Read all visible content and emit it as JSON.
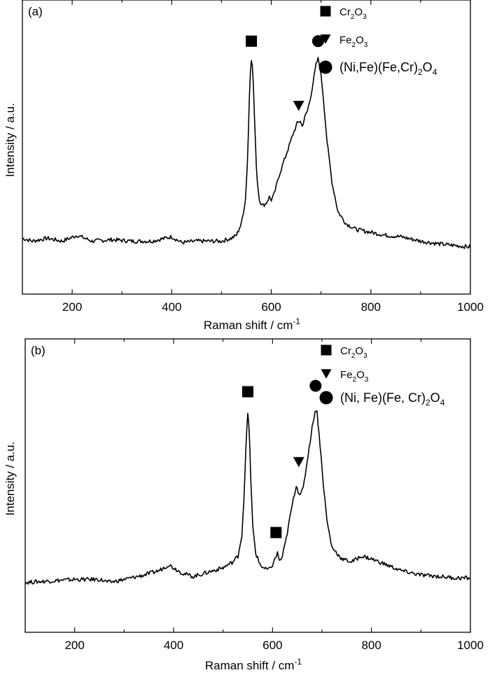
{
  "colors": {
    "line": "#000000",
    "background": "#ffffff"
  },
  "chart_data": [
    {
      "type": "line",
      "panel_label": "(a)",
      "xlabel": "Raman shift / cm",
      "xlabel_sup": "-1",
      "ylabel": "Intensity / a.u.",
      "xlim": [
        100,
        1000
      ],
      "ylim": [
        0,
        100
      ],
      "x_ticks": [
        200,
        400,
        600,
        800,
        1000
      ],
      "x_tick_labels": [
        "200",
        "400",
        "600",
        "800",
        "1000"
      ],
      "y_ticks_labeled": false,
      "grid": false,
      "series": [
        {
          "name": "spectrum (a)",
          "points": [
            [
              100,
              19
            ],
            [
              120,
              18
            ],
            [
              150,
              19
            ],
            [
              180,
              18
            ],
            [
              210,
              20
            ],
            [
              240,
              18
            ],
            [
              280,
              18.5
            ],
            [
              320,
              18
            ],
            [
              360,
              18
            ],
            [
              400,
              19.5
            ],
            [
              420,
              17.5
            ],
            [
              450,
              18
            ],
            [
              480,
              18
            ],
            [
              500,
              18
            ],
            [
              520,
              19
            ],
            [
              530,
              20
            ],
            [
              540,
              24
            ],
            [
              548,
              32
            ],
            [
              553,
              48
            ],
            [
              557,
              74
            ],
            [
              560,
              80
            ],
            [
              563,
              76
            ],
            [
              567,
              56
            ],
            [
              571,
              40
            ],
            [
              576,
              32
            ],
            [
              583,
              30
            ],
            [
              590,
              31
            ],
            [
              596,
              33
            ],
            [
              600,
              32
            ],
            [
              606,
              34
            ],
            [
              615,
              40
            ],
            [
              625,
              45
            ],
            [
              635,
              50
            ],
            [
              645,
              55
            ],
            [
              652,
              58
            ],
            [
              658,
              59
            ],
            [
              662,
              57
            ],
            [
              667,
              60
            ],
            [
              672,
              62
            ],
            [
              678,
              66
            ],
            [
              684,
              72
            ],
            [
              690,
              78
            ],
            [
              694,
              80
            ],
            [
              698,
              77
            ],
            [
              704,
              68
            ],
            [
              712,
              52
            ],
            [
              722,
              38
            ],
            [
              734,
              28
            ],
            [
              750,
              24
            ],
            [
              770,
              22
            ],
            [
              800,
              21
            ],
            [
              830,
              20
            ],
            [
              860,
              19.5
            ],
            [
              900,
              18
            ],
            [
              940,
              17
            ],
            [
              970,
              16.5
            ],
            [
              1000,
              16
            ]
          ]
        }
      ],
      "markers": [
        {
          "shape": "square",
          "x": 560,
          "y": 86,
          "assignment": "Cr2O3"
        },
        {
          "shape": "triangle",
          "x": 655,
          "y": 64,
          "assignment": "Fe2O3"
        },
        {
          "shape": "circle",
          "x": 694,
          "y": 86,
          "assignment": "(Ni,Fe)(Fe,Cr)2O4"
        }
      ],
      "legend": {
        "position": "top-right",
        "entries": [
          {
            "marker": "square",
            "parts": [
              [
                "Cr",
                ""
              ],
              [
                "2",
                "sub"
              ],
              [
                "O",
                ""
              ],
              [
                "3",
                "sub"
              ]
            ]
          },
          {
            "marker": "triangle",
            "parts": [
              [
                "Fe",
                ""
              ],
              [
                "2",
                "sub"
              ],
              [
                "O",
                ""
              ],
              [
                "3",
                "sub"
              ]
            ]
          },
          {
            "marker": "circle",
            "parts": [
              [
                "(Ni,Fe)(Fe,Cr)",
                ""
              ],
              [
                "2",
                "sub"
              ],
              [
                "O",
                ""
              ],
              [
                "4",
                "sub"
              ]
            ]
          }
        ]
      }
    },
    {
      "type": "line",
      "panel_label": "(b)",
      "xlabel": "Raman shift / cm",
      "xlabel_sup": "-1",
      "ylabel": "Intensity / a.u.",
      "xlim": [
        100,
        1000
      ],
      "ylim": [
        0,
        100
      ],
      "x_ticks": [
        200,
        400,
        600,
        800,
        1000
      ],
      "x_tick_labels": [
        "200",
        "400",
        "600",
        "800",
        "1000"
      ],
      "y_ticks_labeled": false,
      "grid": false,
      "series": [
        {
          "name": "spectrum (b)",
          "points": [
            [
              100,
              17
            ],
            [
              150,
              17.5
            ],
            [
              200,
              18
            ],
            [
              250,
              18
            ],
            [
              270,
              17
            ],
            [
              300,
              18
            ],
            [
              340,
              19.5
            ],
            [
              370,
              21
            ],
            [
              390,
              23
            ],
            [
              400,
              22
            ],
            [
              420,
              20
            ],
            [
              440,
              19
            ],
            [
              460,
              20
            ],
            [
              480,
              21
            ],
            [
              500,
              22
            ],
            [
              520,
              24
            ],
            [
              530,
              26
            ],
            [
              538,
              33
            ],
            [
              543,
              48
            ],
            [
              547,
              67
            ],
            [
              550,
              74
            ],
            [
              553,
              70
            ],
            [
              556,
              52
            ],
            [
              560,
              36
            ],
            [
              566,
              27
            ],
            [
              575,
              23
            ],
            [
              585,
              21.5
            ],
            [
              595,
              21.5
            ],
            [
              600,
              23
            ],
            [
              605,
              25
            ],
            [
              610,
              27
            ],
            [
              615,
              24
            ],
            [
              620,
              26
            ],
            [
              628,
              32
            ],
            [
              636,
              40
            ],
            [
              644,
              47
            ],
            [
              648,
              50
            ],
            [
              652,
              48
            ],
            [
              657,
              47
            ],
            [
              662,
              49
            ],
            [
              668,
              56
            ],
            [
              675,
              64
            ],
            [
              682,
              72
            ],
            [
              687,
              76
            ],
            [
              690,
              75
            ],
            [
              695,
              66
            ],
            [
              702,
              52
            ],
            [
              710,
              38
            ],
            [
              720,
              29
            ],
            [
              740,
              25
            ],
            [
              760,
              24
            ],
            [
              780,
              26
            ],
            [
              800,
              25
            ],
            [
              830,
              23
            ],
            [
              860,
              21
            ],
            [
              900,
              19.5
            ],
            [
              940,
              19
            ],
            [
              970,
              18.5
            ],
            [
              1000,
              18.5
            ]
          ]
        }
      ],
      "markers": [
        {
          "shape": "square",
          "x": 550,
          "y": 82,
          "assignment": "Cr2O3"
        },
        {
          "shape": "square",
          "x": 607,
          "y": 34,
          "assignment": "Cr2O3"
        },
        {
          "shape": "triangle",
          "x": 653,
          "y": 58,
          "assignment": "Fe2O3"
        },
        {
          "shape": "circle",
          "x": 687,
          "y": 84,
          "assignment": "(Ni, Fe)(Fe, Cr)2O4"
        }
      ],
      "legend": {
        "position": "top-right",
        "entries": [
          {
            "marker": "square",
            "parts": [
              [
                "Cr",
                ""
              ],
              [
                "2",
                "sub"
              ],
              [
                "O",
                ""
              ],
              [
                "3",
                "sub"
              ]
            ]
          },
          {
            "marker": "triangle",
            "parts": [
              [
                "Fe",
                ""
              ],
              [
                "2",
                "sub"
              ],
              [
                "O",
                ""
              ],
              [
                "3",
                "sub"
              ]
            ]
          },
          {
            "marker": "circle",
            "parts": [
              [
                "(Ni, Fe)(Fe, Cr)",
                ""
              ],
              [
                "2",
                "sub"
              ],
              [
                "O",
                ""
              ],
              [
                "4",
                "sub"
              ]
            ]
          }
        ]
      }
    }
  ]
}
